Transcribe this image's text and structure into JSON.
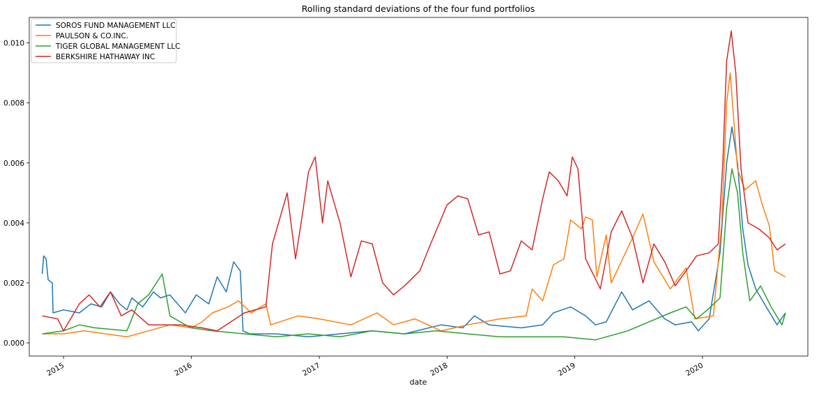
{
  "chart_data": {
    "type": "line",
    "title": "Rolling standard deviations of the four fund portfolios",
    "xlabel": "date",
    "ylabel": "",
    "xlim": [
      "2014-09-25",
      "2020-10-28"
    ],
    "ylim": [
      -0.00044,
      0.01085
    ],
    "x_ticks": [
      "2015",
      "2016",
      "2017",
      "2018",
      "2019",
      "2020"
    ],
    "y_ticks": [
      "0.000",
      "0.002",
      "0.004",
      "0.006",
      "0.008",
      "0.010"
    ],
    "grid": false,
    "legend": "upper left",
    "series": [
      {
        "name": "SOROS FUND MANAGEMENT LLC",
        "color": "#1f77b4",
        "points": [
          [
            "2014-11-01",
            0.0023
          ],
          [
            "2014-11-05",
            0.0029
          ],
          [
            "2014-11-12",
            0.0028
          ],
          [
            "2014-11-18",
            0.0021
          ],
          [
            "2014-11-30",
            0.002
          ],
          [
            "2014-12-02",
            0.001
          ],
          [
            "2015-01-01",
            0.0011
          ],
          [
            "2015-02-15",
            0.001
          ],
          [
            "2015-03-20",
            0.0013
          ],
          [
            "2015-04-20",
            0.0012
          ],
          [
            "2015-05-15",
            0.0017
          ],
          [
            "2015-06-10",
            0.0013
          ],
          [
            "2015-07-01",
            0.0011
          ],
          [
            "2015-07-15",
            0.0015
          ],
          [
            "2015-08-15",
            0.0012
          ],
          [
            "2015-09-15",
            0.0017
          ],
          [
            "2015-10-05",
            0.0015
          ],
          [
            "2015-11-01",
            0.0016
          ],
          [
            "2015-12-15",
            0.001
          ],
          [
            "2016-01-15",
            0.0016
          ],
          [
            "2016-02-20",
            0.0013
          ],
          [
            "2016-03-15",
            0.0022
          ],
          [
            "2016-04-10",
            0.0017
          ],
          [
            "2016-05-01",
            0.0027
          ],
          [
            "2016-05-20",
            0.0024
          ],
          [
            "2016-05-28",
            0.0004
          ],
          [
            "2016-06-15",
            0.0003
          ],
          [
            "2016-09-01",
            0.0003
          ],
          [
            "2016-12-01",
            0.0002
          ],
          [
            "2017-03-01",
            0.0003
          ],
          [
            "2017-06-01",
            0.0004
          ],
          [
            "2017-09-01",
            0.0003
          ],
          [
            "2017-12-15",
            0.0006
          ],
          [
            "2018-02-15",
            0.0005
          ],
          [
            "2018-03-20",
            0.0009
          ],
          [
            "2018-05-01",
            0.0006
          ],
          [
            "2018-08-01",
            0.0005
          ],
          [
            "2018-10-01",
            0.0006
          ],
          [
            "2018-11-01",
            0.001
          ],
          [
            "2018-12-20",
            0.0012
          ],
          [
            "2019-02-01",
            0.0009
          ],
          [
            "2019-03-01",
            0.0006
          ],
          [
            "2019-04-01",
            0.0007
          ],
          [
            "2019-05-15",
            0.0017
          ],
          [
            "2019-06-15",
            0.0011
          ],
          [
            "2019-08-01",
            0.0014
          ],
          [
            "2019-09-15",
            0.0008
          ],
          [
            "2019-10-15",
            0.0006
          ],
          [
            "2019-12-01",
            0.0007
          ],
          [
            "2019-12-20",
            0.0004
          ],
          [
            "2020-01-20",
            0.0008
          ],
          [
            "2020-02-20",
            0.003
          ],
          [
            "2020-03-10",
            0.006
          ],
          [
            "2020-03-25",
            0.0072
          ],
          [
            "2020-04-10",
            0.006
          ],
          [
            "2020-04-25",
            0.0038
          ],
          [
            "2020-05-10",
            0.0026
          ],
          [
            "2020-06-01",
            0.0018
          ],
          [
            "2020-07-01",
            0.0012
          ],
          [
            "2020-08-01",
            0.0006
          ],
          [
            "2020-08-25",
            0.001
          ]
        ]
      },
      {
        "name": "PAULSON & CO.INC.",
        "color": "#ff7f0e",
        "points": [
          [
            "2014-11-01",
            0.0003
          ],
          [
            "2015-01-01",
            0.0003
          ],
          [
            "2015-03-01",
            0.0004
          ],
          [
            "2015-05-01",
            0.0003
          ],
          [
            "2015-07-01",
            0.0002
          ],
          [
            "2015-09-01",
            0.0004
          ],
          [
            "2015-11-01",
            0.0006
          ],
          [
            "2016-01-01",
            0.0005
          ],
          [
            "2016-02-01",
            0.0007
          ],
          [
            "2016-03-01",
            0.001
          ],
          [
            "2016-04-15",
            0.0012
          ],
          [
            "2016-05-15",
            0.0014
          ],
          [
            "2016-06-20",
            0.001
          ],
          [
            "2016-08-01",
            0.0013
          ],
          [
            "2016-08-15",
            0.0006
          ],
          [
            "2016-11-01",
            0.0009
          ],
          [
            "2017-01-01",
            0.0008
          ],
          [
            "2017-04-01",
            0.0006
          ],
          [
            "2017-06-15",
            0.001
          ],
          [
            "2017-08-01",
            0.0006
          ],
          [
            "2017-10-01",
            0.0008
          ],
          [
            "2017-12-15",
            0.0004
          ],
          [
            "2018-03-01",
            0.0006
          ],
          [
            "2018-06-01",
            0.0008
          ],
          [
            "2018-08-15",
            0.0009
          ],
          [
            "2018-09-01",
            0.0018
          ],
          [
            "2018-10-01",
            0.0014
          ],
          [
            "2018-11-01",
            0.0026
          ],
          [
            "2018-12-01",
            0.0028
          ],
          [
            "2018-12-20",
            0.0041
          ],
          [
            "2019-01-20",
            0.0038
          ],
          [
            "2019-02-01",
            0.0042
          ],
          [
            "2019-02-20",
            0.0041
          ],
          [
            "2019-03-05",
            0.0022
          ],
          [
            "2019-04-01",
            0.0036
          ],
          [
            "2019-04-15",
            0.002
          ],
          [
            "2019-06-15",
            0.0035
          ],
          [
            "2019-07-15",
            0.0043
          ],
          [
            "2019-08-15",
            0.0027
          ],
          [
            "2019-10-01",
            0.0018
          ],
          [
            "2019-11-15",
            0.0025
          ],
          [
            "2019-12-10",
            0.0008
          ],
          [
            "2020-02-01",
            0.0009
          ],
          [
            "2020-02-25",
            0.004
          ],
          [
            "2020-03-10",
            0.008
          ],
          [
            "2020-03-20",
            0.009
          ],
          [
            "2020-04-10",
            0.0058
          ],
          [
            "2020-05-01",
            0.0051
          ],
          [
            "2020-06-01",
            0.0054
          ],
          [
            "2020-06-20",
            0.0046
          ],
          [
            "2020-07-10",
            0.0039
          ],
          [
            "2020-07-25",
            0.0024
          ],
          [
            "2020-08-25",
            0.0022
          ]
        ]
      },
      {
        "name": "TIGER GLOBAL MANAGEMENT LLC",
        "color": "#2ca02c",
        "points": [
          [
            "2014-11-01",
            0.0003
          ],
          [
            "2015-01-01",
            0.0004
          ],
          [
            "2015-02-15",
            0.0006
          ],
          [
            "2015-04-01",
            0.0005
          ],
          [
            "2015-07-01",
            0.0004
          ],
          [
            "2015-08-01",
            0.0013
          ],
          [
            "2015-09-01",
            0.0016
          ],
          [
            "2015-10-10",
            0.0023
          ],
          [
            "2015-11-01",
            0.0009
          ],
          [
            "2015-12-15",
            0.0006
          ],
          [
            "2016-01-01",
            0.0005
          ],
          [
            "2016-03-01",
            0.0004
          ],
          [
            "2016-06-01",
            0.0003
          ],
          [
            "2016-09-01",
            0.0002
          ],
          [
            "2016-12-01",
            0.0003
          ],
          [
            "2017-03-01",
            0.0002
          ],
          [
            "2017-06-01",
            0.0004
          ],
          [
            "2017-09-01",
            0.0003
          ],
          [
            "2017-12-01",
            0.0004
          ],
          [
            "2018-03-01",
            0.0003
          ],
          [
            "2018-06-01",
            0.0002
          ],
          [
            "2018-09-01",
            0.0002
          ],
          [
            "2018-12-01",
            0.0002
          ],
          [
            "2019-03-01",
            0.0001
          ],
          [
            "2019-06-01",
            0.0004
          ],
          [
            "2019-08-01",
            0.0007
          ],
          [
            "2019-10-01",
            0.001
          ],
          [
            "2019-11-15",
            0.0012
          ],
          [
            "2019-12-15",
            0.0008
          ],
          [
            "2020-01-15",
            0.0011
          ],
          [
            "2020-02-20",
            0.0015
          ],
          [
            "2020-03-10",
            0.0045
          ],
          [
            "2020-03-25",
            0.0058
          ],
          [
            "2020-04-10",
            0.005
          ],
          [
            "2020-04-25",
            0.003
          ],
          [
            "2020-05-15",
            0.0014
          ],
          [
            "2020-06-15",
            0.0019
          ],
          [
            "2020-07-15",
            0.0012
          ],
          [
            "2020-08-15",
            0.0006
          ],
          [
            "2020-08-25",
            0.001
          ]
        ]
      },
      {
        "name": "BERKSHIRE HATHAWAY INC",
        "color": "#d62728",
        "points": [
          [
            "2014-11-01",
            0.0009
          ],
          [
            "2014-12-15",
            0.0008
          ],
          [
            "2015-01-01",
            0.0004
          ],
          [
            "2015-02-15",
            0.0013
          ],
          [
            "2015-03-15",
            0.0016
          ],
          [
            "2015-04-15",
            0.0012
          ],
          [
            "2015-05-15",
            0.0017
          ],
          [
            "2015-06-15",
            0.0009
          ],
          [
            "2015-07-15",
            0.0011
          ],
          [
            "2015-09-01",
            0.0006
          ],
          [
            "2015-12-01",
            0.0006
          ],
          [
            "2016-02-01",
            0.0005
          ],
          [
            "2016-03-15",
            0.0004
          ],
          [
            "2016-06-01",
            0.001
          ],
          [
            "2016-08-01",
            0.0012
          ],
          [
            "2016-08-20",
            0.0033
          ],
          [
            "2016-10-01",
            0.005
          ],
          [
            "2016-10-25",
            0.0028
          ],
          [
            "2016-11-15",
            0.0044
          ],
          [
            "2016-12-01",
            0.0057
          ],
          [
            "2016-12-20",
            0.0062
          ],
          [
            "2017-01-10",
            0.004
          ],
          [
            "2017-01-25",
            0.0054
          ],
          [
            "2017-03-01",
            0.004
          ],
          [
            "2017-04-01",
            0.0022
          ],
          [
            "2017-05-01",
            0.0034
          ],
          [
            "2017-06-01",
            0.0033
          ],
          [
            "2017-07-01",
            0.002
          ],
          [
            "2017-08-01",
            0.0016
          ],
          [
            "2017-09-01",
            0.0019
          ],
          [
            "2017-10-15",
            0.0024
          ],
          [
            "2017-11-15",
            0.0033
          ],
          [
            "2018-01-01",
            0.0046
          ],
          [
            "2018-02-01",
            0.0049
          ],
          [
            "2018-03-01",
            0.0048
          ],
          [
            "2018-04-01",
            0.0036
          ],
          [
            "2018-05-01",
            0.0037
          ],
          [
            "2018-06-01",
            0.0023
          ],
          [
            "2018-07-01",
            0.0024
          ],
          [
            "2018-08-01",
            0.0034
          ],
          [
            "2018-09-01",
            0.0031
          ],
          [
            "2018-10-01",
            0.0048
          ],
          [
            "2018-10-20",
            0.0057
          ],
          [
            "2018-11-15",
            0.0054
          ],
          [
            "2018-12-10",
            0.0049
          ],
          [
            "2018-12-25",
            0.0062
          ],
          [
            "2019-01-10",
            0.0058
          ],
          [
            "2019-02-01",
            0.0028
          ],
          [
            "2019-03-15",
            0.0018
          ],
          [
            "2019-04-15",
            0.0037
          ],
          [
            "2019-05-15",
            0.0044
          ],
          [
            "2019-06-15",
            0.0035
          ],
          [
            "2019-07-15",
            0.002
          ],
          [
            "2019-08-15",
            0.0033
          ],
          [
            "2019-09-15",
            0.0027
          ],
          [
            "2019-10-15",
            0.0019
          ],
          [
            "2019-11-15",
            0.0024
          ],
          [
            "2019-12-15",
            0.0029
          ],
          [
            "2020-01-20",
            0.003
          ],
          [
            "2020-02-15",
            0.0033
          ],
          [
            "2020-02-28",
            0.006
          ],
          [
            "2020-03-10",
            0.0094
          ],
          [
            "2020-03-23",
            0.0104
          ],
          [
            "2020-04-05",
            0.009
          ],
          [
            "2020-04-20",
            0.0058
          ],
          [
            "2020-05-10",
            0.004
          ],
          [
            "2020-06-10",
            0.0038
          ],
          [
            "2020-07-10",
            0.0035
          ],
          [
            "2020-08-01",
            0.0031
          ],
          [
            "2020-08-25",
            0.0033
          ]
        ]
      }
    ]
  }
}
